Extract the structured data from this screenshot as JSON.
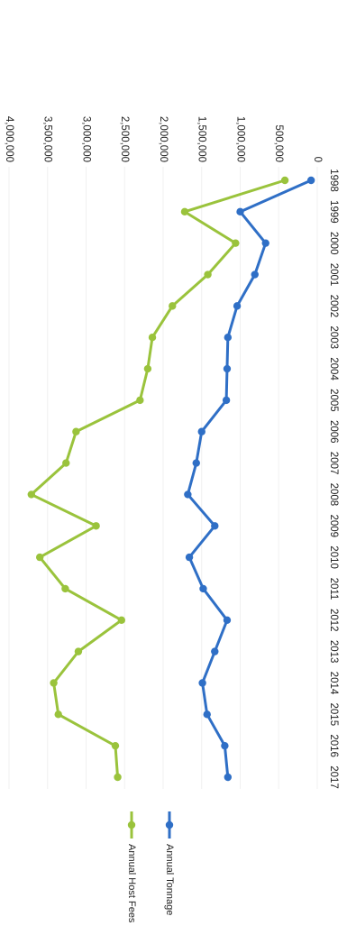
{
  "chart_data": {
    "type": "line",
    "categories": [
      "1998",
      "1999",
      "2000",
      "2001",
      "2002",
      "2003",
      "2004",
      "2005",
      "2006",
      "2007",
      "2008",
      "2009",
      "2010",
      "2011",
      "2012",
      "2013",
      "2014",
      "2015",
      "2016",
      "2017"
    ],
    "series": [
      {
        "name": "Annual Tonnage",
        "color": "#2f6fc6",
        "values": [
          80000,
          1000000,
          670000,
          810000,
          1040000,
          1160000,
          1170000,
          1180000,
          1500000,
          1570000,
          1680000,
          1330000,
          1660000,
          1480000,
          1170000,
          1330000,
          1490000,
          1430000,
          1200000,
          1160000
        ]
      },
      {
        "name": "Annual Host Fees",
        "color": "#9ac33c",
        "values": [
          420000,
          1720000,
          1060000,
          1420000,
          1880000,
          2140000,
          2200000,
          2300000,
          3130000,
          3260000,
          3710000,
          2870000,
          3600000,
          3270000,
          2540000,
          3100000,
          3420000,
          3360000,
          2620000,
          2590000
        ]
      }
    ],
    "y_ticks": [
      "0",
      "500,000",
      "1,000,000",
      "1,500,000",
      "2,000,000",
      "2,500,000",
      "3,000,000",
      "3,500,000",
      "4,000,000"
    ],
    "ylim": [
      0,
      4000000
    ],
    "grid": true,
    "legend_position": "right",
    "orientation": "rotated 90° clockwise"
  }
}
